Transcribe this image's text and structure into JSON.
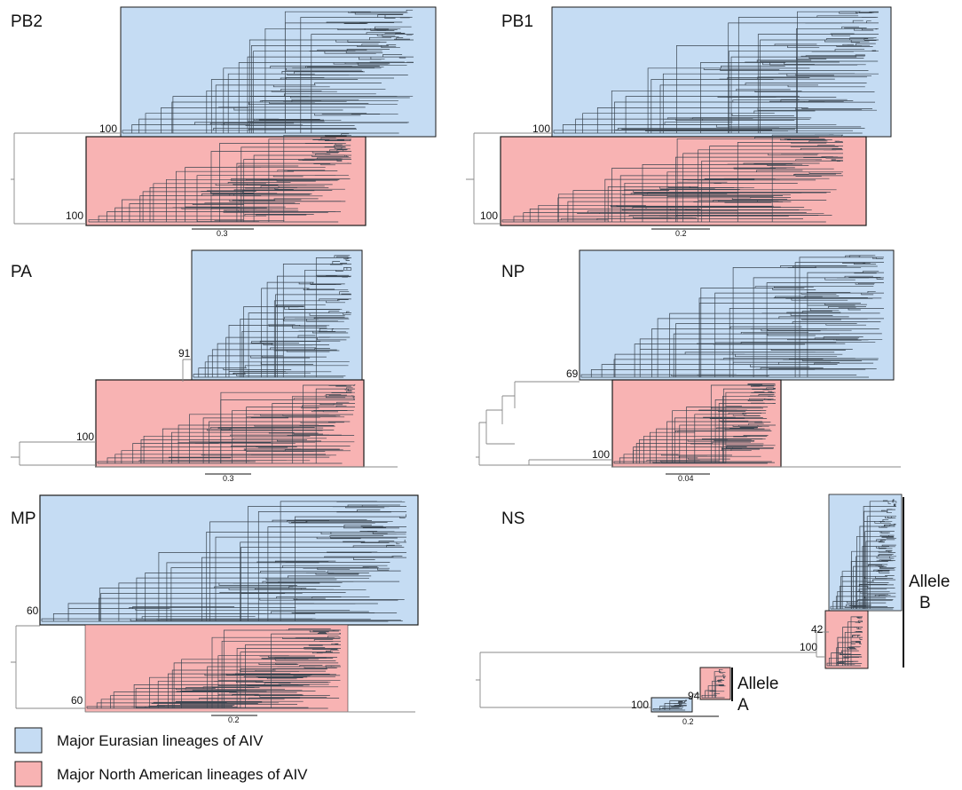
{
  "colors": {
    "eurasian_fill": "#c5dcf3",
    "north_american_fill": "#f8b3b3",
    "box_stroke": "#1a1a1a",
    "branch": "#3a4550"
  },
  "panels": [
    {
      "id": "pb2",
      "title": "PB2",
      "bootstraps": [
        "100",
        "100"
      ],
      "scale": "0.3"
    },
    {
      "id": "pb1",
      "title": "PB1",
      "bootstraps": [
        "100",
        "100"
      ],
      "scale": "0.2"
    },
    {
      "id": "pa",
      "title": "PA",
      "bootstraps": [
        "91",
        "100"
      ],
      "scale": "0.3"
    },
    {
      "id": "np",
      "title": "NP",
      "bootstraps": [
        "69",
        "100"
      ],
      "scale": "0.04"
    },
    {
      "id": "mp",
      "title": "MP",
      "bootstraps": [
        "60",
        "60"
      ],
      "scale": "0.2"
    },
    {
      "id": "ns",
      "title": "NS",
      "bootstraps": [
        "42",
        "100",
        "94",
        "100"
      ],
      "scale": "0.2",
      "alleles": [
        "Allele",
        "B",
        "Allele",
        "A"
      ]
    }
  ],
  "legend": [
    {
      "label": "Major Eurasian lineages of AIV",
      "color": "#c5dcf3"
    },
    {
      "label": "Major North American lineages of AIV",
      "color": "#f8b3b3"
    }
  ]
}
